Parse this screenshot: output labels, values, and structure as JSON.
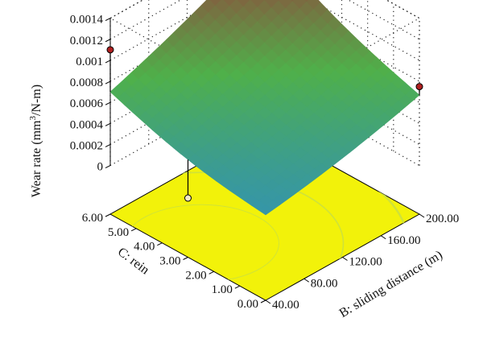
{
  "chart_data": {
    "type": "surface3d",
    "title": "",
    "x_axis": {
      "label": "B: sliding distance (m)",
      "ticks": [
        "40.00",
        "80.00",
        "120.00",
        "160.00",
        "200.00"
      ],
      "range": [
        40,
        200
      ]
    },
    "y_axis": {
      "label": "C: rein",
      "ticks": [
        "0.00",
        "1.00",
        "2.00",
        "3.00",
        "4.00",
        "5.00",
        "6.00"
      ],
      "range": [
        0,
        6
      ]
    },
    "z_axis": {
      "label_prefix": "Wear rate (mm",
      "label_sup": "3",
      "label_suffix": "/N-m)",
      "ticks": [
        "0",
        "0.0002",
        "0.0004",
        "0.0006",
        "0.0008",
        "0.001",
        "0.0012",
        "0.0014"
      ],
      "range": [
        0,
        0.0014
      ]
    },
    "surface_corners": [
      {
        "sliding_distance": 40,
        "rein": 0,
        "wear_rate": 0.00035
      },
      {
        "sliding_distance": 200,
        "rein": 0,
        "wear_rate": 0.00055
      },
      {
        "sliding_distance": 40,
        "rein": 6,
        "wear_rate": 0.0007
      },
      {
        "sliding_distance": 200,
        "rein": 6,
        "wear_rate": 0.0012
      }
    ],
    "design_points": [
      {
        "sliding_distance": 40,
        "rein": 6,
        "wear_rate": 0.0011,
        "position": "above"
      },
      {
        "sliding_distance": 200,
        "rein": 0,
        "wear_rate": 0.00075,
        "position": "above"
      },
      {
        "sliding_distance": 40,
        "rein": 3,
        "wear_rate": 0.0001,
        "position": "below"
      }
    ],
    "colors": {
      "floor": "#f2f20a",
      "floor_contour": "#cfe23a",
      "low": "#2f8fc0",
      "mid": "#4fb04a",
      "high": "#9a3a3a",
      "point": "#b02020"
    },
    "grid": true
  }
}
